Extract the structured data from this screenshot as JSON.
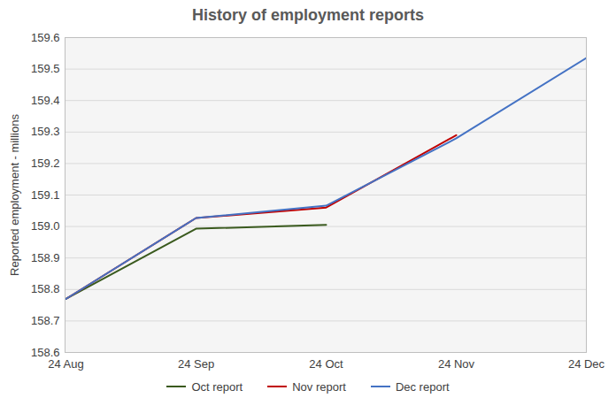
{
  "chart_data": {
    "type": "line",
    "title": "History of employment reports",
    "y_label": "Reported employment - millions",
    "x": [
      "24 Aug",
      "24 Sep",
      "24 Oct",
      "24 Nov",
      "24 Dec"
    ],
    "series": [
      {
        "name": "Oct report",
        "color": "#3a5a1e",
        "values": [
          158.77,
          158.993,
          159.005,
          null,
          null
        ]
      },
      {
        "name": "Nov report",
        "color": "#c00000",
        "values": [
          158.77,
          159.027,
          159.06,
          159.29,
          null
        ]
      },
      {
        "name": "Dec report",
        "color": "#4472c4",
        "values": [
          158.77,
          159.027,
          159.066,
          159.28,
          159.535
        ]
      }
    ],
    "ylim": [
      158.6,
      159.6
    ],
    "yticks": [
      158.6,
      158.7,
      158.8,
      158.9,
      {
        "value": 159,
        "label": "159.0"
      },
      159.1,
      159.2,
      159.3,
      159.4,
      159.5,
      159.6
    ],
    "grid": true,
    "legend": "bottom"
  }
}
